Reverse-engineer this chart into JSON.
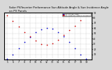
{
  "title": "Solar PV/Inverter Performance Sun Altitude Angle & Sun Incidence Angle on PV Panels",
  "title_fontsize": 2.8,
  "legend_labels": [
    "Sun Altitude Angle",
    "Sun Incidence Angle on PV Panels"
  ],
  "legend_colors": [
    "#0000cc",
    "#cc0000"
  ],
  "background_color": "#d8d8d8",
  "plot_bg_color": "#ffffff",
  "ylim": [
    0,
    90
  ],
  "xlim": [
    4.5,
    20
  ],
  "ytick_values": [
    10,
    20,
    30,
    40,
    50,
    60,
    70,
    80,
    90
  ],
  "grid_color": "#aaaaaa",
  "time_hours": [
    5,
    6,
    7,
    8,
    9,
    10,
    11,
    12,
    13,
    14,
    15,
    16,
    17,
    18,
    19
  ],
  "sun_altitude": [
    2,
    10,
    22,
    33,
    43,
    52,
    58,
    61,
    59,
    53,
    44,
    33,
    21,
    9,
    1
  ],
  "sun_incidence": [
    85,
    74,
    63,
    53,
    44,
    36,
    30,
    28,
    31,
    38,
    47,
    56,
    65,
    75,
    85
  ],
  "dot_size": 1.5,
  "altitude_color": "#0000cc",
  "incidence_color": "#cc0000",
  "xtick_positions": [
    5,
    6,
    7,
    8,
    9,
    10,
    11,
    12,
    13,
    14,
    15,
    16,
    17,
    18,
    19
  ],
  "tick_fontsize": 2.2,
  "ylabel_right": true
}
